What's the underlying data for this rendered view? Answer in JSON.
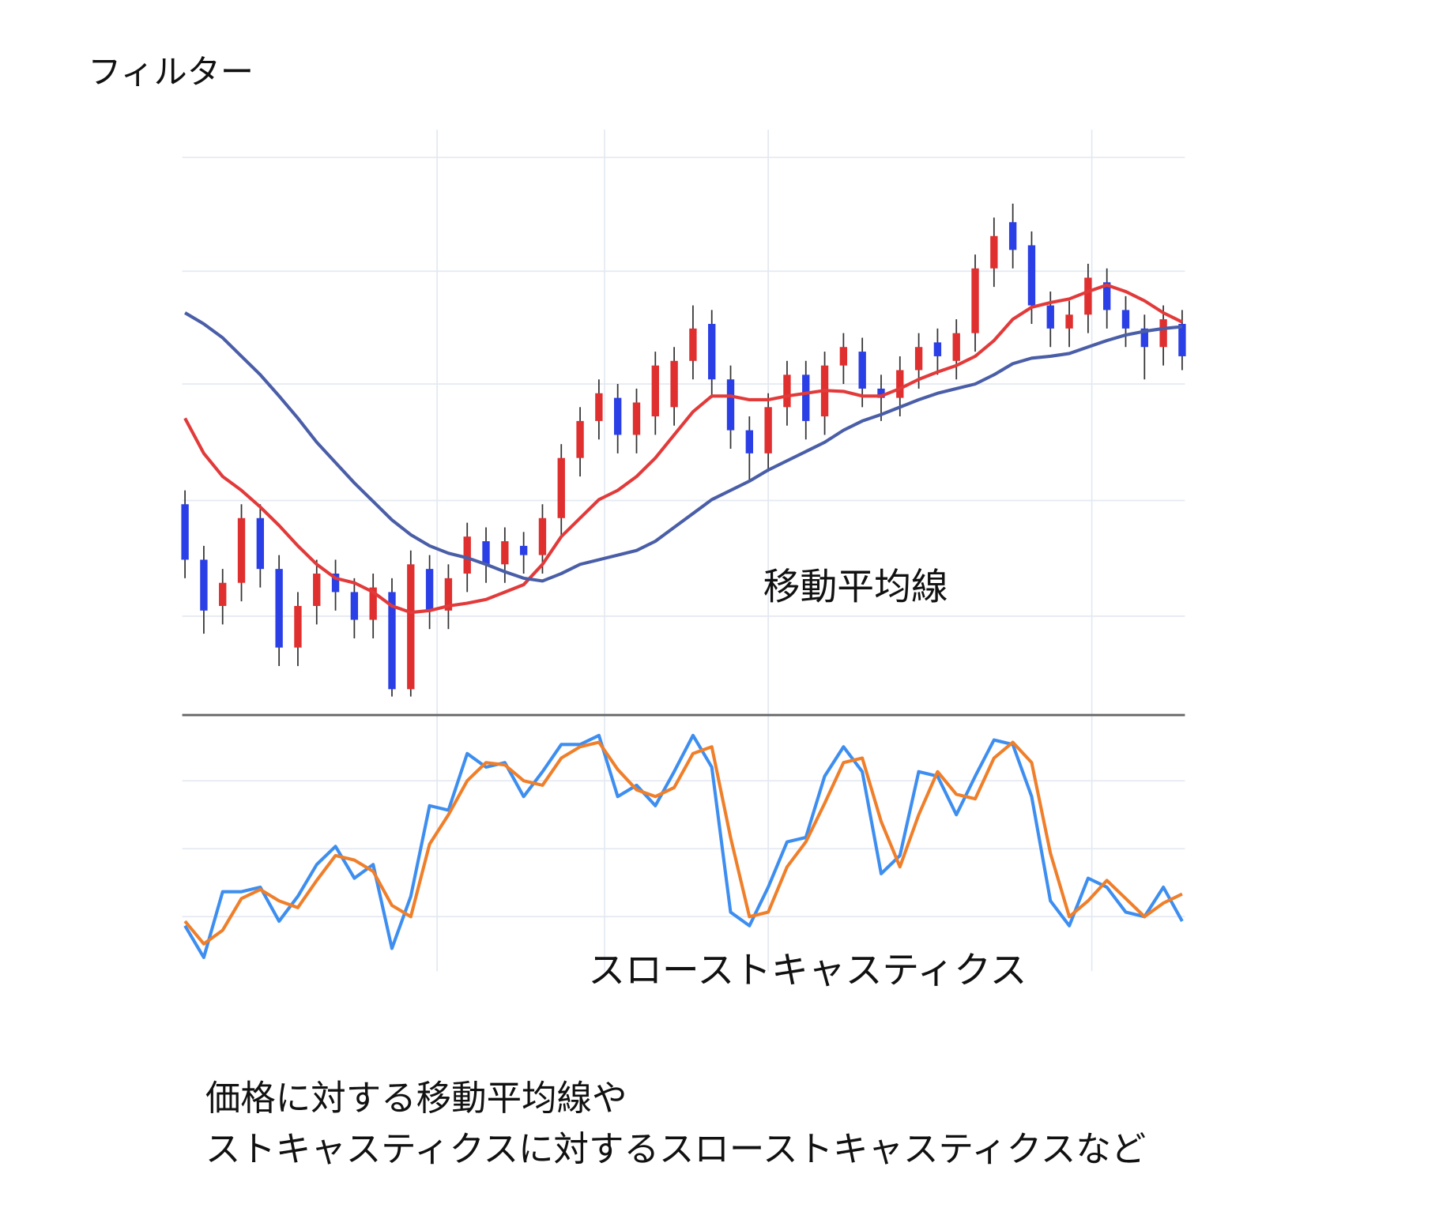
{
  "title": "フィルター",
  "chart_data": [
    {
      "type": "candlestick",
      "annotation": "移動平均線",
      "x": [
        0,
        1,
        2,
        3,
        4,
        5,
        6,
        7,
        8,
        9,
        10,
        11,
        12,
        13,
        14,
        15,
        16,
        17,
        18,
        19,
        20,
        21,
        22,
        23,
        24,
        25,
        26,
        27,
        28,
        29,
        30,
        31,
        32,
        33,
        34,
        35,
        36,
        37,
        38,
        39,
        40,
        41,
        42,
        43,
        44,
        45,
        46,
        47,
        48,
        49,
        50,
        51,
        52,
        53
      ],
      "open": [
        228,
        168,
        118,
        143,
        213,
        158,
        73,
        118,
        153,
        133,
        103,
        133,
        28,
        158,
        113,
        153,
        188,
        163,
        183,
        173,
        213,
        278,
        318,
        343,
        303,
        323,
        333,
        383,
        423,
        363,
        308,
        283,
        333,
        368,
        323,
        378,
        393,
        353,
        343,
        373,
        403,
        383,
        413,
        483,
        533,
        508,
        443,
        418,
        433,
        468,
        438,
        418,
        398,
        423
      ],
      "high": [
        243,
        183,
        158,
        228,
        228,
        173,
        133,
        168,
        168,
        148,
        153,
        148,
        178,
        173,
        163,
        208,
        203,
        203,
        198,
        228,
        293,
        333,
        363,
        358,
        353,
        393,
        398,
        443,
        438,
        378,
        323,
        348,
        383,
        383,
        393,
        413,
        408,
        368,
        388,
        413,
        418,
        428,
        498,
        538,
        553,
        523,
        458,
        448,
        488,
        483,
        453,
        433,
        443,
        438
      ],
      "low": [
        148,
        88,
        98,
        123,
        138,
        53,
        53,
        98,
        113,
        83,
        83,
        20,
        20,
        93,
        93,
        133,
        143,
        143,
        153,
        153,
        193,
        258,
        298,
        283,
        283,
        303,
        313,
        363,
        343,
        288,
        253,
        263,
        313,
        298,
        303,
        358,
        333,
        318,
        323,
        353,
        368,
        363,
        393,
        463,
        483,
        423,
        398,
        398,
        413,
        418,
        398,
        363,
        378,
        373
      ],
      "close": [
        168,
        113,
        143,
        213,
        158,
        73,
        118,
        153,
        133,
        103,
        138,
        28,
        163,
        113,
        148,
        193,
        163,
        188,
        173,
        213,
        278,
        318,
        348,
        303,
        338,
        378,
        383,
        418,
        363,
        308,
        283,
        333,
        368,
        318,
        378,
        398,
        353,
        343,
        373,
        398,
        388,
        413,
        483,
        518,
        503,
        443,
        418,
        433,
        473,
        438,
        418,
        398,
        428,
        388
      ],
      "up_color": "#e02f2f",
      "down_color": "#2b3fe6",
      "wick_color": "#333333",
      "series": [
        {
          "color": "#e23a3a",
          "values": [
            321,
            283,
            258,
            243,
            225,
            205,
            183,
            163,
            148,
            143,
            133,
            118,
            111,
            113,
            118,
            121,
            125,
            133,
            141,
            163,
            193,
            213,
            233,
            243,
            258,
            278,
            303,
            328,
            345,
            345,
            341,
            341,
            345,
            348,
            351,
            350,
            345,
            345,
            353,
            363,
            371,
            378,
            388,
            405,
            428,
            441,
            446,
            450,
            458,
            465,
            458,
            448,
            435,
            425
          ]
        },
        {
          "color": "#4a5ea8",
          "values": [
            435,
            423,
            408,
            388,
            368,
            345,
            321,
            295,
            273,
            251,
            231,
            211,
            195,
            183,
            175,
            170,
            163,
            155,
            148,
            145,
            153,
            163,
            168,
            173,
            178,
            188,
            203,
            218,
            233,
            243,
            253,
            265,
            275,
            285,
            295,
            308,
            318,
            325,
            333,
            341,
            348,
            353,
            358,
            368,
            380,
            386,
            388,
            391,
            398,
            405,
            411,
            415,
            418,
            420
          ]
        }
      ],
      "xlim": [
        0,
        53
      ],
      "xticks": [
        13.4,
        22.3,
        31,
        48.2
      ],
      "ylim": [
        0,
        633
      ],
      "yticks": [
        107,
        232,
        358,
        480,
        603
      ],
      "grid": true
    },
    {
      "type": "line",
      "annotation": "スローストキャスティクス",
      "x": [
        0,
        1,
        2,
        3,
        4,
        5,
        6,
        7,
        8,
        9,
        10,
        11,
        12,
        13,
        14,
        15,
        16,
        17,
        18,
        19,
        20,
        21,
        22,
        23,
        24,
        25,
        26,
        27,
        28,
        29,
        30,
        31,
        32,
        33,
        34,
        35,
        36,
        37,
        38,
        39,
        40,
        41,
        42,
        43,
        44,
        45,
        46,
        47,
        48,
        49,
        50,
        51,
        52,
        53
      ],
      "series": [
        {
          "color": "#3d8ef0",
          "values": [
            16,
            2,
            31,
            31,
            33,
            18,
            29,
            43,
            51,
            37,
            43,
            6,
            29,
            69,
            67,
            92,
            86,
            88,
            73,
            84,
            96,
            96,
            100,
            73,
            78,
            69,
            84,
            100,
            86,
            22,
            16,
            33,
            53,
            55,
            82,
            95,
            84,
            39,
            47,
            84,
            82,
            65,
            82,
            98,
            96,
            73,
            27,
            16,
            37,
            33,
            22,
            20,
            33,
            18
          ]
        },
        {
          "color": "#ef7f2a",
          "values": [
            18,
            8,
            14,
            28,
            32,
            27,
            24,
            36,
            47,
            45,
            40,
            25,
            20,
            52,
            65,
            80,
            88,
            87,
            80,
            78,
            90,
            95,
            97,
            85,
            76,
            73,
            77,
            92,
            95,
            55,
            20,
            22,
            42,
            53,
            70,
            88,
            90,
            62,
            42,
            65,
            84,
            74,
            72,
            90,
            97,
            88,
            48,
            20,
            27,
            36,
            28,
            20,
            26,
            30
          ]
        }
      ],
      "xlim": [
        0,
        53
      ],
      "xticks": [
        13.4,
        22.3,
        31,
        48.2
      ],
      "ylim": [
        0,
        100
      ],
      "yticks": [
        20,
        50,
        80
      ],
      "grid": true
    }
  ],
  "caption": [
    "価格に対する移動平均線や",
    "ストキャスティクスに対するスローストキャスティクスなど"
  ]
}
